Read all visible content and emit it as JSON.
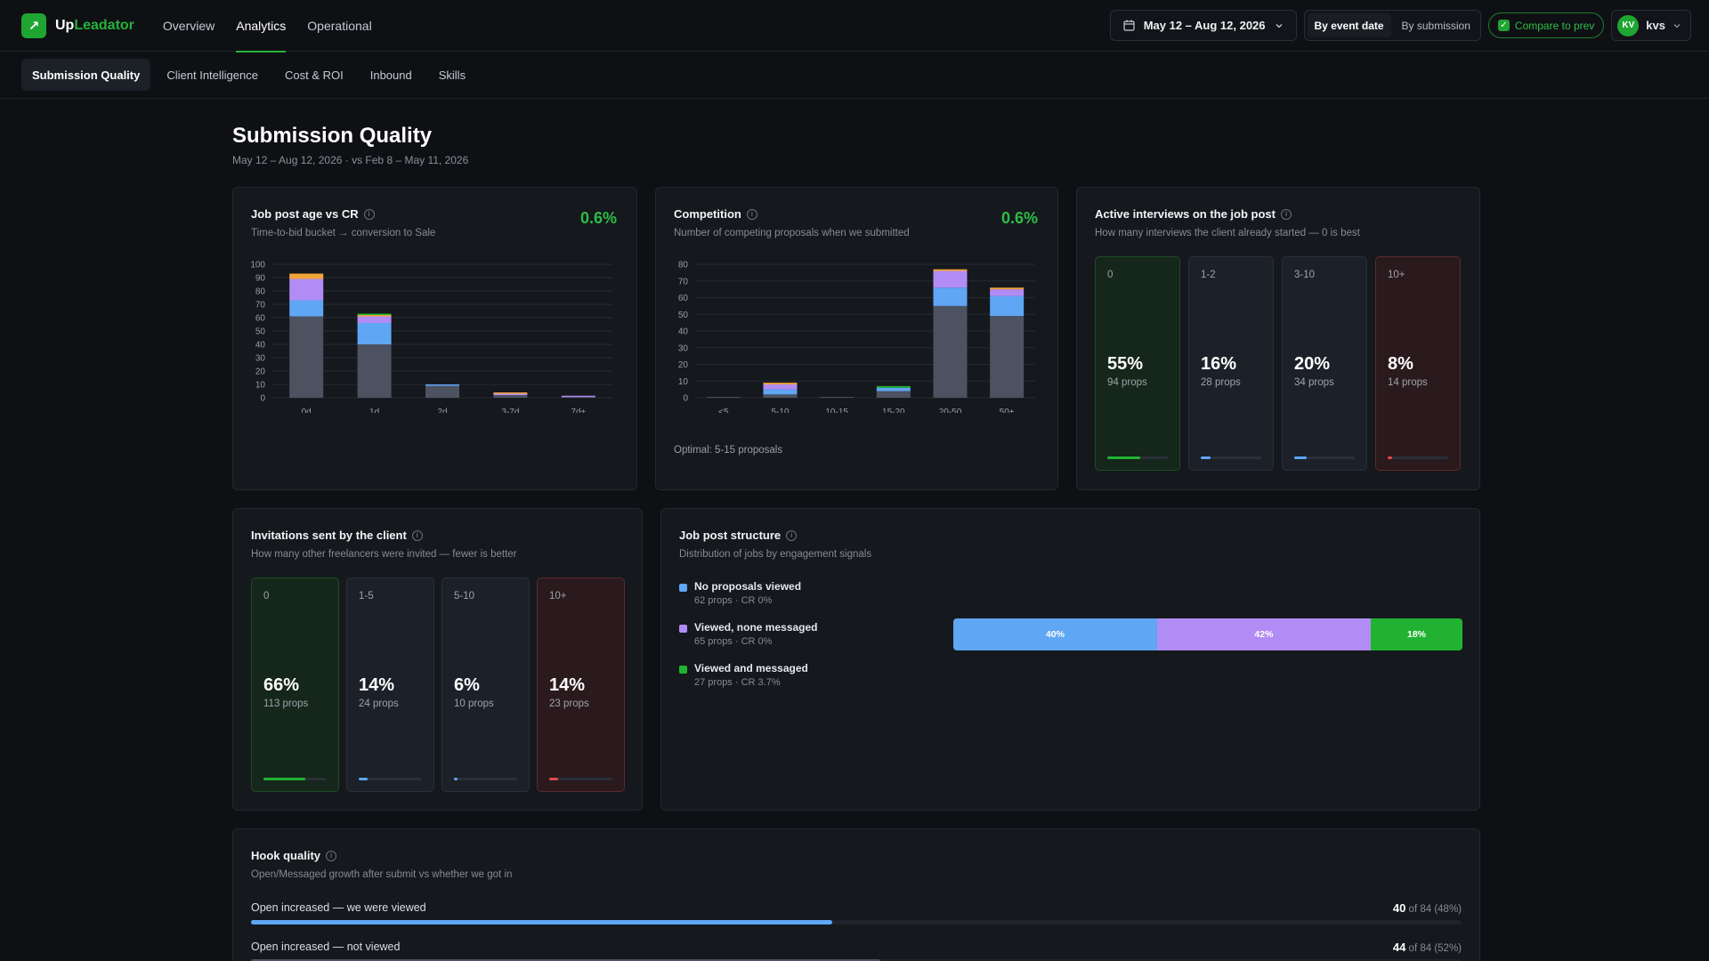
{
  "app": {
    "brand_up": "Up",
    "brand_lead": "Leadator"
  },
  "nav": {
    "items": [
      {
        "label": "Overview",
        "active": false
      },
      {
        "label": "Analytics",
        "active": true
      },
      {
        "label": "Operational",
        "active": false
      }
    ]
  },
  "header": {
    "date_range": "May 12 – Aug 12, 2026",
    "by_event": "By event date",
    "by_submission": "By submission",
    "compare": "Compare to prev",
    "avatar": "KV",
    "user": "kvs"
  },
  "subtabs": [
    {
      "label": "Submission Quality",
      "active": true
    },
    {
      "label": "Client Intelligence",
      "active": false
    },
    {
      "label": "Cost & ROI",
      "active": false
    },
    {
      "label": "Inbound",
      "active": false
    },
    {
      "label": "Skills",
      "active": false
    }
  ],
  "page": {
    "title": "Submission Quality",
    "subtitle": "May 12 – Aug 12, 2026 · vs Feb 8 – May 11, 2026"
  },
  "colors": {
    "gray": "#4c5260",
    "blue": "#5fa6f5",
    "purple": "#b28cf5",
    "orange": "#f0a53a",
    "green": "#22b232",
    "red": "#e5484d",
    "grid": "#262a32"
  },
  "job_post_age": {
    "title": "Job post age vs CR",
    "subtitle": "Time-to-bid bucket → conversion to Sale",
    "metric": "0.6%"
  },
  "competition": {
    "title": "Competition",
    "subtitle": "Number of competing proposals when we submitted",
    "metric": "0.6%",
    "note": "Optimal: 5-15 proposals"
  },
  "chart_data": [
    {
      "type": "bar",
      "stacked": true,
      "title": "Job post age vs CR",
      "categories": [
        "0d",
        "1d",
        "2d",
        "3-7d",
        "7d+"
      ],
      "ylim": [
        0,
        100
      ],
      "yticks": [
        0,
        10,
        20,
        30,
        40,
        50,
        60,
        70,
        80,
        90,
        100
      ],
      "grid": true,
      "series": [
        {
          "color": "#4c5260",
          "values": [
            61,
            40,
            9,
            2,
            0.5
          ]
        },
        {
          "color": "#5fa6f5",
          "values": [
            12,
            16,
            1,
            0,
            0
          ]
        },
        {
          "color": "#b28cf5",
          "values": [
            16,
            5,
            0,
            1,
            1
          ]
        },
        {
          "color": "#f0a53a",
          "values": [
            4,
            1,
            0,
            1,
            0
          ]
        },
        {
          "color": "#22b232",
          "values": [
            0,
            1,
            0,
            0,
            0
          ]
        }
      ]
    },
    {
      "type": "bar",
      "stacked": true,
      "title": "Competition",
      "categories": [
        "<5",
        "5-10",
        "10-15",
        "15-20",
        "20-50",
        "50+"
      ],
      "ylim": [
        0,
        80
      ],
      "yticks": [
        0,
        10,
        20,
        30,
        40,
        50,
        60,
        70,
        80
      ],
      "grid": true,
      "series": [
        {
          "color": "#4c5260",
          "values": [
            0.5,
            2,
            0.5,
            4,
            55,
            49
          ]
        },
        {
          "color": "#5fa6f5",
          "values": [
            0,
            3,
            0,
            2,
            11,
            12
          ]
        },
        {
          "color": "#b28cf5",
          "values": [
            0,
            3,
            0,
            0,
            10,
            4
          ]
        },
        {
          "color": "#f0a53a",
          "values": [
            0,
            1,
            0,
            0,
            1,
            1
          ]
        },
        {
          "color": "#22b232",
          "values": [
            0,
            0,
            0,
            1,
            0,
            0
          ]
        }
      ]
    }
  ],
  "interviews": {
    "title": "Active interviews on the job post",
    "subtitle": "How many interviews the client already started — 0 is best",
    "buckets": [
      {
        "label": "0",
        "pct": "55%",
        "props": "94 props",
        "fill": 0.55,
        "tone": "good",
        "color": "#22b232"
      },
      {
        "label": "1-2",
        "pct": "16%",
        "props": "28 props",
        "fill": 0.16,
        "tone": "neutral",
        "color": "#5fa6f5"
      },
      {
        "label": "3-10",
        "pct": "20%",
        "props": "34 props",
        "fill": 0.2,
        "tone": "neutral",
        "color": "#5fa6f5"
      },
      {
        "label": "10+",
        "pct": "8%",
        "props": "14 props",
        "fill": 0.08,
        "tone": "bad",
        "color": "#e5484d"
      }
    ]
  },
  "invitations": {
    "title": "Invitations sent by the client",
    "subtitle": "How many other freelancers were invited — fewer is better",
    "buckets": [
      {
        "label": "0",
        "pct": "66%",
        "props": "113 props",
        "fill": 0.66,
        "tone": "good",
        "color": "#22b232"
      },
      {
        "label": "1-5",
        "pct": "14%",
        "props": "24 props",
        "fill": 0.14,
        "tone": "neutral",
        "color": "#5fa6f5"
      },
      {
        "label": "5-10",
        "pct": "6%",
        "props": "10 props",
        "fill": 0.06,
        "tone": "neutral",
        "color": "#5fa6f5"
      },
      {
        "label": "10+",
        "pct": "14%",
        "props": "23 props",
        "fill": 0.14,
        "tone": "bad",
        "color": "#e5484d"
      }
    ]
  },
  "structure": {
    "title": "Job post structure",
    "subtitle": "Distribution of jobs by engagement signals",
    "items": [
      {
        "name": "No proposals viewed",
        "meta": "62 props · CR 0%",
        "color": "#5fa6f5"
      },
      {
        "name": "Viewed, none messaged",
        "meta": "65 props · CR 0%",
        "color": "#b28cf5"
      },
      {
        "name": "Viewed and messaged",
        "meta": "27 props · CR 3.7%",
        "color": "#22b232"
      }
    ],
    "bar": [
      {
        "label": "40%",
        "share": 0.4,
        "color": "#5fa6f5"
      },
      {
        "label": "42%",
        "share": 0.42,
        "color": "#b28cf5"
      },
      {
        "label": "18%",
        "share": 0.18,
        "color": "#22b232"
      }
    ]
  },
  "hook": {
    "title": "Hook quality",
    "subtitle": "Open/Messaged growth after submit vs whether we got in",
    "rows": [
      {
        "label": "Open increased — we were viewed",
        "count": "40",
        "of": "of 84 (48%)",
        "share": 0.48,
        "color": "#5fa6f5"
      },
      {
        "label": "Open increased — not viewed",
        "count": "44",
        "of": "of 84 (52%)",
        "share": 0.52,
        "color": "#4c5260"
      }
    ]
  }
}
